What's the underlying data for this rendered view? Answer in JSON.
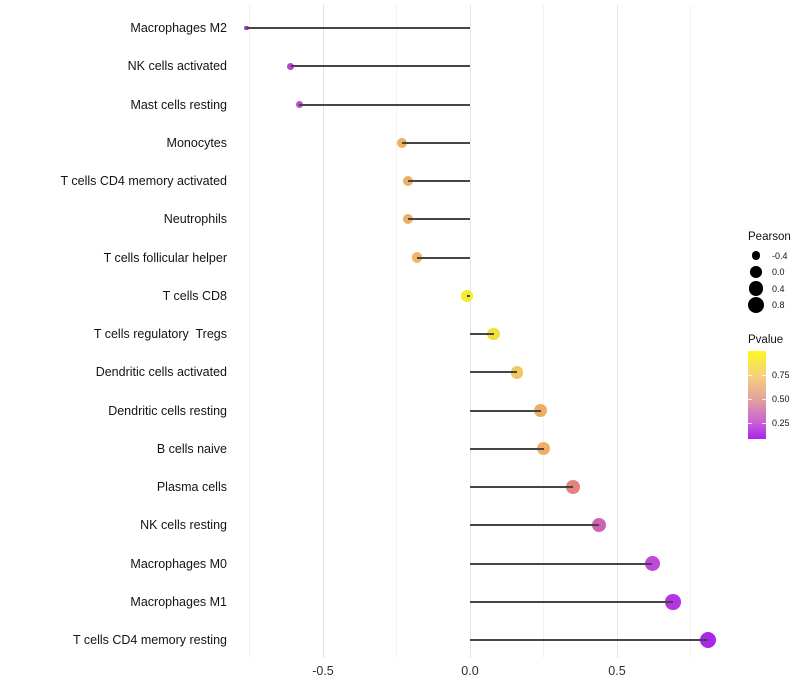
{
  "chart_data": {
    "type": "lollipop",
    "orientation": "horizontal",
    "title": "",
    "xlabel": "",
    "ylabel": "",
    "grid": "vertical-only",
    "baseline": 0,
    "xlim": [
      -0.82,
      0.86
    ],
    "categories": [
      "Macrophages M2",
      "NK cells activated",
      "Mast cells resting",
      "Monocytes",
      "T cells CD4 memory activated",
      "Neutrophils",
      "T cells follicular helper",
      "T cells CD8",
      "T cells regulatory  Tregs",
      "Dendritic cells activated",
      "Dendritic cells resting",
      "B cells naive",
      "Plasma cells",
      "NK cells resting",
      "Macrophages M0",
      "Macrophages M1",
      "T cells CD4 memory resting"
    ],
    "series": [
      {
        "name": "Pearson",
        "values": [
          -0.76,
          -0.61,
          -0.58,
          -0.23,
          -0.21,
          -0.21,
          -0.18,
          -0.01,
          0.08,
          0.16,
          0.24,
          0.25,
          0.35,
          0.44,
          0.62,
          0.69,
          0.81
        ]
      },
      {
        "name": "Pvalue (estimated from color)",
        "values": [
          0.1,
          0.22,
          0.25,
          0.65,
          0.65,
          0.65,
          0.68,
          0.95,
          0.9,
          0.78,
          0.64,
          0.65,
          0.48,
          0.33,
          0.24,
          0.18,
          0.12
        ]
      }
    ],
    "point_colors": [
      "#9632c8",
      "#b845cf",
      "#bd4cc9",
      "#efb065",
      "#efb065",
      "#eeaf63",
      "#eeb765",
      "#f2ee2b",
      "#f2e038",
      "#efc95d",
      "#eead60",
      "#eeb065",
      "#e2837e",
      "#cf62b2",
      "#c148d8",
      "#b634e3",
      "#aa26ea"
    ],
    "stem_color": "#454545",
    "x_ticks": [
      {
        "label": "-0.5",
        "value": -0.5
      },
      {
        "label": "0.0",
        "value": 0.0
      },
      {
        "label": "0.5",
        "value": 0.5
      }
    ],
    "grid_major": [
      -0.5,
      0.0,
      0.5
    ],
    "grid_minor": [
      -0.75,
      -0.25,
      0.25,
      0.75
    ],
    "legend": {
      "position": "right",
      "size": {
        "title": "Pearson",
        "entries": [
          {
            "label": "-0.4",
            "value": -0.4
          },
          {
            "label": "0.0",
            "value": 0.0
          },
          {
            "label": "0.4",
            "value": 0.4
          },
          {
            "label": "0.8",
            "value": 0.8
          }
        ],
        "key_color": "#000000"
      },
      "color": {
        "title": "Pvalue",
        "ticks": [
          {
            "label": "0.75",
            "frac_from_top": 0.273
          },
          {
            "label": "0.50",
            "frac_from_top": 0.545
          },
          {
            "label": "0.25",
            "frac_from_top": 0.82
          }
        ],
        "gradient_stops": [
          {
            "color": "#fbf920",
            "pos": 0
          },
          {
            "color": "#f5d27b",
            "pos": 27
          },
          {
            "color": "#e2a29c",
            "pos": 55
          },
          {
            "color": "#c75fd6",
            "pos": 82
          },
          {
            "color": "#ac22ec",
            "pos": 100
          }
        ]
      }
    }
  }
}
